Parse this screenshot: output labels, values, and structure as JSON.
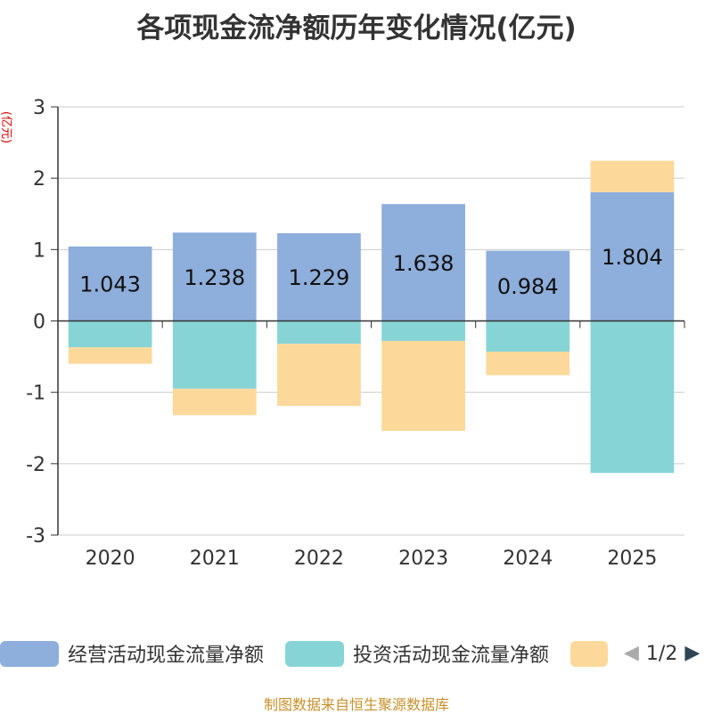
{
  "chart_data": {
    "type": "bar",
    "stacked": true,
    "title": "各项现金流净额历年变化情况(亿元)",
    "ylabel": "(亿元)",
    "xlabel": "",
    "categories": [
      "2020",
      "2021",
      "2022",
      "2023",
      "2024",
      "2025"
    ],
    "ylim": [
      -3,
      3
    ],
    "yticks": [
      3,
      2,
      1,
      0,
      -1,
      -2,
      -3
    ],
    "series": [
      {
        "name": "经营活动现金流量净额",
        "color": "#8eaedb",
        "values": [
          1.043,
          1.238,
          1.229,
          1.638,
          0.984,
          1.804
        ]
      },
      {
        "name": "投资活动现金流量净额",
        "color": "#87d4d6",
        "values": [
          -0.37,
          -0.95,
          -0.32,
          -0.28,
          -0.43,
          -2.13
        ]
      },
      {
        "name": "",
        "color": "#fcd99a",
        "values": [
          -0.23,
          -0.37,
          -0.87,
          -1.26,
          -0.33,
          0.44
        ]
      }
    ],
    "data_labels": [
      "1.043",
      "1.238",
      "1.229",
      "1.638",
      "0.984",
      "1.804"
    ]
  },
  "legend": {
    "items": [
      {
        "label": "经营活动现金流量净额",
        "color": "#8eaedb"
      },
      {
        "label": "投资活动现金流量净额",
        "color": "#87d4d6"
      },
      {
        "label": "",
        "color": "#fcd99a"
      }
    ],
    "pager": {
      "text": "1/2",
      "prev_icon": "triangle-left-icon",
      "next_icon": "triangle-right-icon"
    }
  },
  "source_note": "制图数据来自恒生聚源数据库"
}
